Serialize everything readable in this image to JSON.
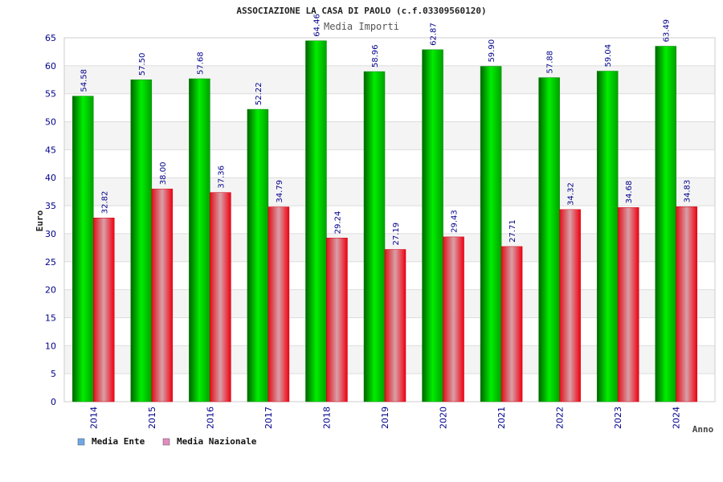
{
  "chart_data": {
    "type": "bar",
    "title": "ASSOCIAZIONE LA CASA DI PAOLO (c.f.03309560120)",
    "subtitle": "Media Importi",
    "xlabel": "Anno",
    "ylabel": "Euro",
    "categories": [
      "2014",
      "2015",
      "2016",
      "2017",
      "2018",
      "2019",
      "2020",
      "2021",
      "2022",
      "2023",
      "2024"
    ],
    "series": [
      {
        "name": "Media Ente",
        "values": [
          54.58,
          57.5,
          57.68,
          52.22,
          64.46,
          58.96,
          62.87,
          59.9,
          57.88,
          59.04,
          63.49
        ],
        "labels": [
          "54.58",
          "57.50",
          "57.68",
          "52.22",
          "64.46",
          "58.96",
          "62.87",
          "59.90",
          "57.88",
          "59.04",
          "63.49"
        ],
        "color": "#00c000",
        "legend_color": "#6fa8e6"
      },
      {
        "name": "Media Nazionale",
        "values": [
          32.82,
          38.0,
          37.36,
          34.79,
          29.24,
          27.19,
          29.43,
          27.71,
          34.32,
          34.68,
          34.83
        ],
        "labels": [
          "32.82",
          "38.00",
          "37.36",
          "34.79",
          "29.24",
          "27.19",
          "29.43",
          "27.71",
          "34.32",
          "34.68",
          "34.83"
        ],
        "color": "#e8101e",
        "legend_color": "#e38bc0"
      }
    ],
    "ylim": [
      0,
      65
    ],
    "yticks": [
      "0",
      "5",
      "10",
      "15",
      "20",
      "25",
      "30",
      "35",
      "40",
      "45",
      "50",
      "55",
      "60",
      "65"
    ],
    "grid": true,
    "legend": "bottom-left"
  }
}
